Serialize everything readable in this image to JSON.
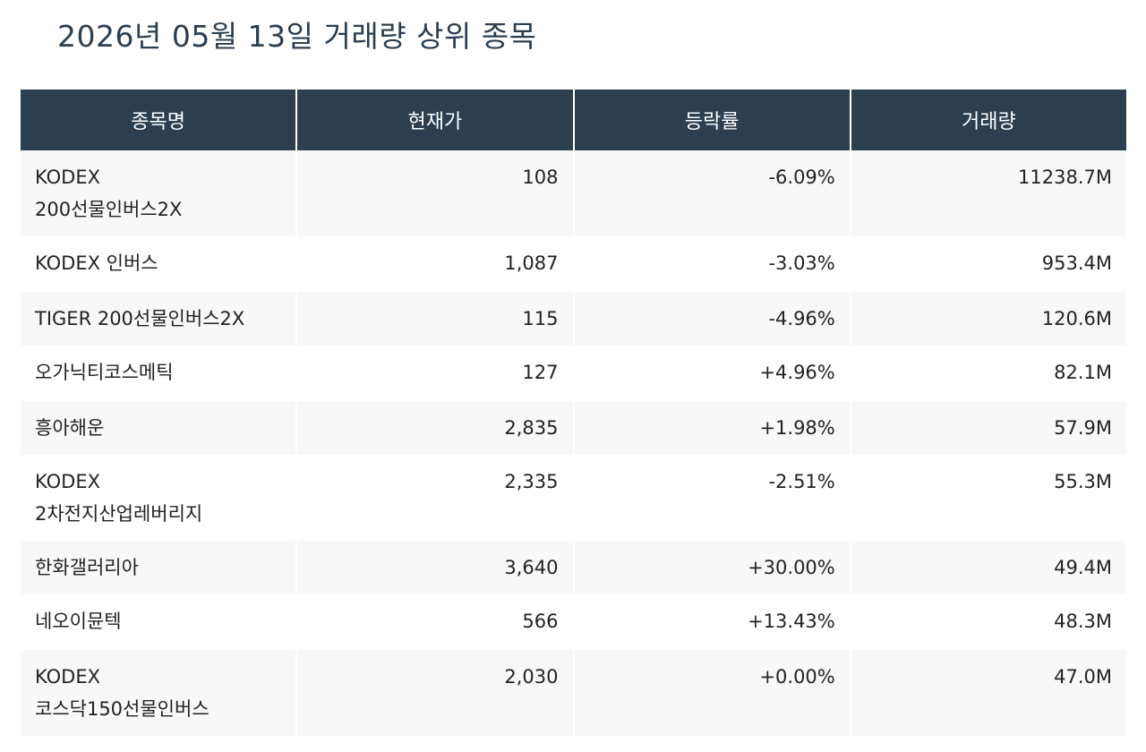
{
  "page_title": "2026년 05월 13일 거래량 상위 종목",
  "colors": {
    "header_bg": "#2c3e50",
    "negative": "#2980b9",
    "positive": "#e74c3c",
    "neutral": "#333333"
  },
  "table": {
    "headers": [
      "종목명",
      "현재가",
      "등락률",
      "거래량"
    ],
    "rows": [
      {
        "name_lines": [
          "KODEX",
          "200선물인버스2X"
        ],
        "price": "108",
        "change": "-6.09%",
        "direction": "negative",
        "volume": "11238.7M"
      },
      {
        "name_lines": [
          "KODEX 인버스"
        ],
        "price": "1,087",
        "change": "-3.03%",
        "direction": "negative",
        "volume": "953.4M"
      },
      {
        "name_lines": [
          "TIGER 200선물인버스2X"
        ],
        "price": "115",
        "change": "-4.96%",
        "direction": "negative",
        "volume": "120.6M"
      },
      {
        "name_lines": [
          "오가닉티코스메틱"
        ],
        "price": "127",
        "change": "+4.96%",
        "direction": "positive",
        "volume": "82.1M"
      },
      {
        "name_lines": [
          "흥아해운"
        ],
        "price": "2,835",
        "change": "+1.98%",
        "direction": "positive",
        "volume": "57.9M"
      },
      {
        "name_lines": [
          "KODEX",
          "2차전지산업레버리지"
        ],
        "price": "2,335",
        "change": "-2.51%",
        "direction": "negative",
        "volume": "55.3M"
      },
      {
        "name_lines": [
          "한화갤러리아"
        ],
        "price": "3,640",
        "change": "+30.00%",
        "direction": "positive",
        "volume": "49.4M"
      },
      {
        "name_lines": [
          "네오이뮨텍"
        ],
        "price": "566",
        "change": "+13.43%",
        "direction": "positive",
        "volume": "48.3M"
      },
      {
        "name_lines": [
          "KODEX",
          "코스닥150선물인버스"
        ],
        "price": "2,030",
        "change": "+0.00%",
        "direction": "neutral",
        "volume": "47.0M"
      }
    ]
  }
}
